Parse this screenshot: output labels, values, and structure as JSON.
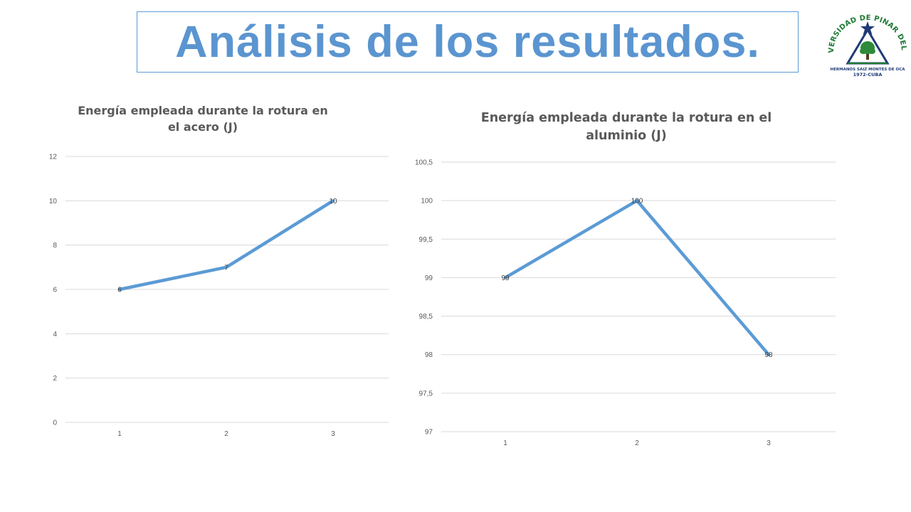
{
  "slide": {
    "title": "Análisis de los resultados."
  },
  "logo": {
    "name": "UNIVERSIDAD DE PINAR DEL RIO",
    "line1": "HERMANOS SAIZ MONTES DE OCA",
    "line2": "1972-CUBA",
    "colors": {
      "green": "#1e7a34",
      "navy": "#1f3a77",
      "tree": "#2e8b3a"
    }
  },
  "colors": {
    "title": "#5b95d0",
    "title_border": "#5b9bd5",
    "series": "#5b9bd5",
    "grid": "#d9d9d9"
  },
  "chart_data": [
    {
      "type": "line",
      "title": "Energía empleada durante la rotura en el acero (J)",
      "categories": [
        "1",
        "2",
        "3"
      ],
      "series": [
        {
          "values": [
            6,
            7,
            10
          ]
        }
      ],
      "data_labels": [
        "6",
        "7",
        "10"
      ],
      "ylim": [
        0,
        12
      ],
      "yticks": [
        "0",
        "2",
        "4",
        "6",
        "8",
        "10",
        "12"
      ],
      "xlabel": "",
      "ylabel": "",
      "grid": true,
      "legend": "none"
    },
    {
      "type": "line",
      "title": "Energía empleada durante la rotura en el aluminio (J)",
      "categories": [
        "1",
        "2",
        "3"
      ],
      "series": [
        {
          "values": [
            99,
            100,
            98
          ]
        }
      ],
      "data_labels": [
        "99",
        "100",
        "98"
      ],
      "ylim": [
        97,
        100.5
      ],
      "yticks": [
        "97",
        "97,5",
        "98",
        "98,5",
        "99",
        "99,5",
        "100",
        "100,5"
      ],
      "xlabel": "",
      "ylabel": "",
      "grid": true,
      "legend": "none"
    }
  ]
}
